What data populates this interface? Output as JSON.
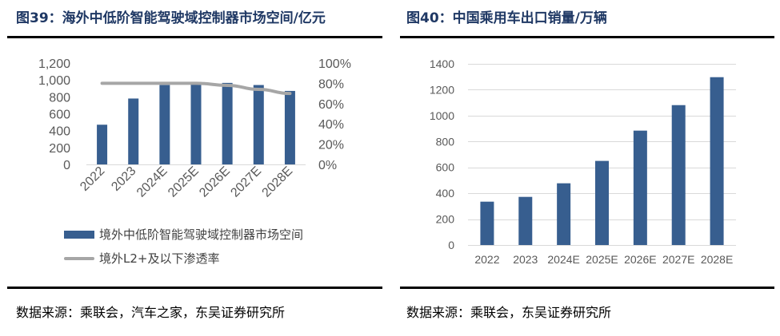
{
  "colors": {
    "bar": "#375e8f",
    "line": "#a6a6a6",
    "title": "#1f3864",
    "grid": "#d9d9d9",
    "axis_text": "#595959"
  },
  "chart_data": [
    {
      "type": "bar+line",
      "title": "图39：海外中低阶智能驾驶域控制器市场空间/亿元",
      "categories": [
        "2022",
        "2023",
        "2024E",
        "2025E",
        "2026E",
        "2027E",
        "2028E"
      ],
      "series": [
        {
          "name": "境外中低阶智能驾驶域控制器市场空间",
          "type": "bar",
          "axis": "left",
          "values": [
            470,
            780,
            940,
            975,
            965,
            940,
            870
          ]
        },
        {
          "name": "境外L2+及以下渗透率",
          "type": "line",
          "axis": "right",
          "values": [
            0.8,
            0.8,
            0.8,
            0.8,
            0.78,
            0.74,
            0.7
          ]
        }
      ],
      "y_left": {
        "ylim": [
          0,
          1200
        ],
        "ticks": [
          0,
          200,
          400,
          600,
          800,
          1000,
          1200
        ],
        "tick_labels": [
          "0",
          "200",
          "400",
          "600",
          "800",
          "1,000",
          "1,200"
        ]
      },
      "y_right": {
        "ylim": [
          0,
          1
        ],
        "ticks": [
          0,
          0.2,
          0.4,
          0.6,
          0.8,
          1.0
        ],
        "tick_labels": [
          "0%",
          "20%",
          "40%",
          "60%",
          "80%",
          "100%"
        ]
      },
      "grid": false,
      "legend": "bottom",
      "source": "数据来源：乘联会，汽车之家，东吴证券研究所"
    },
    {
      "type": "bar",
      "title": "图40：中国乘用车出口销量/万辆",
      "categories": [
        "2022",
        "2023",
        "2024E",
        "2025E",
        "2026E",
        "2027E",
        "2028E"
      ],
      "values": [
        335,
        372,
        477,
        650,
        884,
        1081,
        1297
      ],
      "ylim": [
        0,
        1400
      ],
      "ticks": [
        0,
        200,
        400,
        600,
        800,
        1000,
        1200,
        1400
      ],
      "tick_labels": [
        "0",
        "200",
        "400",
        "600",
        "800",
        "1000",
        "1200",
        "1400"
      ],
      "grid": true,
      "xlabel": "",
      "ylabel": "",
      "source": "数据来源：乘联会，东吴证券研究所"
    }
  ]
}
